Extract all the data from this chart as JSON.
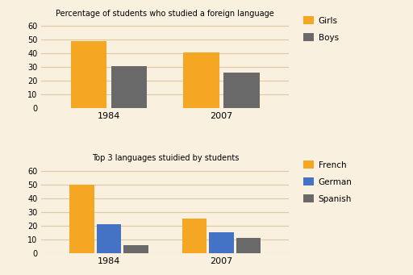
{
  "chart1": {
    "title": "Percentage of students who studied a foreign language",
    "years": [
      "1984",
      "2007"
    ],
    "girls": [
      49,
      41
    ],
    "boys": [
      31,
      26
    ],
    "colors": {
      "girls": "#F5A623",
      "boys": "#696969"
    },
    "legend_labels": [
      "Girls",
      "Boys"
    ],
    "ylim": [
      0,
      65
    ],
    "yticks": [
      0,
      10,
      20,
      30,
      40,
      50,
      60
    ]
  },
  "chart2": {
    "title": "Top 3 languages stuidied by students",
    "years": [
      "1984",
      "2007"
    ],
    "french": [
      50,
      25
    ],
    "german": [
      21,
      15
    ],
    "spanish": [
      6,
      11
    ],
    "colors": {
      "french": "#F5A623",
      "german": "#4472C4",
      "spanish": "#696969"
    },
    "legend_labels": [
      "French",
      "German",
      "Spanish"
    ],
    "ylim": [
      0,
      65
    ],
    "yticks": [
      0,
      10,
      20,
      30,
      40,
      50,
      60
    ]
  },
  "background_color": "#FAF0E0",
  "grid_color": "#E0C8A0"
}
